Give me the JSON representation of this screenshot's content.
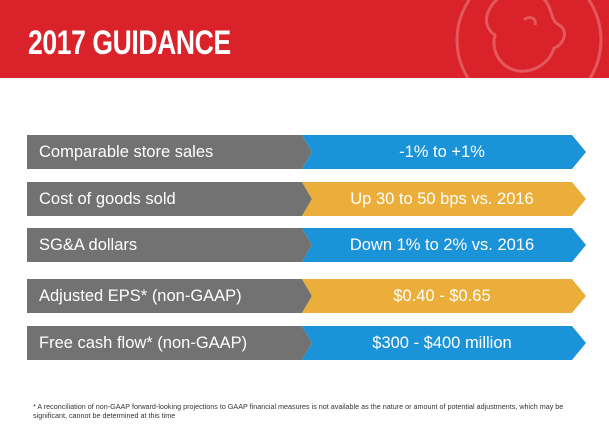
{
  "header": {
    "title": "2017 GUIDANCE"
  },
  "colors": {
    "brand_red": "#d9222a",
    "label_gray": "#727272",
    "value_blue": "#1b93d8",
    "value_orange": "#ebae3a"
  },
  "guidance": [
    {
      "label": "Comparable store sales",
      "value": "-1% to +1%",
      "color": "blue"
    },
    {
      "label": "Cost of goods sold",
      "value": "Up 30 to 50 bps vs. 2016",
      "color": "orange"
    },
    {
      "label": "SG&A dollars",
      "value": "Down 1% to 2% vs. 2016",
      "color": "blue"
    },
    {
      "label": "Adjusted EPS* (non-GAAP)",
      "value": "$0.40 - $0.65",
      "color": "orange"
    },
    {
      "label": "Free cash flow* (non-GAAP)",
      "value": "$300 - $400 million",
      "color": "blue"
    }
  ],
  "footnote": "* A reconciliation of non-GAAP forward-looking projections to GAAP financial measures is not available as the nature or amount of potential adjustments, which may be significant, cannot be determined at this time"
}
